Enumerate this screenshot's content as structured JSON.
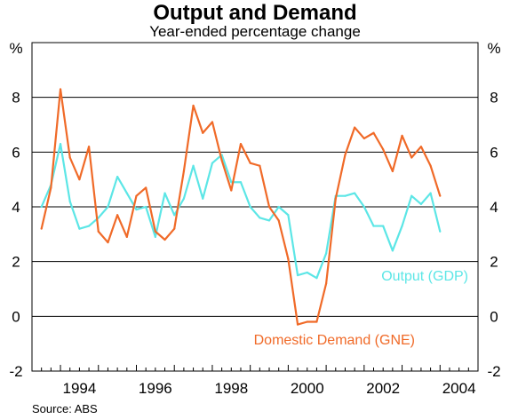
{
  "title": "Output and Demand",
  "subtitle": "Year-ended percentage change",
  "source": "Source: ABS",
  "unit_left": "%",
  "unit_right": "%",
  "colors": {
    "output": "#5ce6e6",
    "demand": "#f06a28",
    "grid": "#000000",
    "background": "#ffffff"
  },
  "chart_data": {
    "type": "line",
    "x_tick_labels": [
      "1994",
      "1996",
      "1998",
      "2000",
      "2002",
      "2004"
    ],
    "y_tick_labels": [
      "-2",
      "0",
      "2",
      "4",
      "6",
      "8"
    ],
    "ylim": [
      -2,
      10
    ],
    "xlim": [
      1993.25,
      2005.0
    ],
    "grid": true,
    "legend": "inline labels",
    "series": [
      {
        "name": "Output (GDP)",
        "label": "Output (GDP)",
        "color": "#5ce6e6",
        "points": [
          [
            1993.5,
            4.0
          ],
          [
            1993.75,
            4.8
          ],
          [
            1994.0,
            6.3
          ],
          [
            1994.25,
            4.2
          ],
          [
            1994.5,
            3.2
          ],
          [
            1994.75,
            3.3
          ],
          [
            1995.0,
            3.6
          ],
          [
            1995.25,
            4.0
          ],
          [
            1995.5,
            5.1
          ],
          [
            1995.75,
            4.5
          ],
          [
            1996.0,
            3.9
          ],
          [
            1996.25,
            4.0
          ],
          [
            1996.5,
            2.9
          ],
          [
            1996.75,
            4.5
          ],
          [
            1997.0,
            3.7
          ],
          [
            1997.25,
            4.3
          ],
          [
            1997.5,
            5.5
          ],
          [
            1997.75,
            4.3
          ],
          [
            1998.0,
            5.6
          ],
          [
            1998.25,
            5.9
          ],
          [
            1998.5,
            4.9
          ],
          [
            1998.75,
            4.9
          ],
          [
            1999.0,
            4.0
          ],
          [
            1999.25,
            3.6
          ],
          [
            1999.5,
            3.5
          ],
          [
            1999.75,
            4.0
          ],
          [
            2000.0,
            3.7
          ],
          [
            2000.25,
            1.5
          ],
          [
            2000.5,
            1.6
          ],
          [
            2000.75,
            1.4
          ],
          [
            2001.0,
            2.3
          ],
          [
            2001.25,
            4.4
          ],
          [
            2001.5,
            4.4
          ],
          [
            2001.75,
            4.5
          ],
          [
            2002.0,
            4.0
          ],
          [
            2002.25,
            3.3
          ],
          [
            2002.5,
            3.3
          ],
          [
            2002.75,
            2.4
          ],
          [
            2003.0,
            3.3
          ],
          [
            2003.25,
            4.4
          ],
          [
            2003.5,
            4.1
          ],
          [
            2003.75,
            4.5
          ],
          [
            2004.0,
            3.1
          ]
        ]
      },
      {
        "name": "Domestic Demand (GNE)",
        "label": "Domestic Demand (GNE)",
        "color": "#f06a28",
        "points": [
          [
            1993.5,
            3.2
          ],
          [
            1993.75,
            4.7
          ],
          [
            1994.0,
            8.3
          ],
          [
            1994.25,
            5.8
          ],
          [
            1994.5,
            5.0
          ],
          [
            1994.75,
            6.2
          ],
          [
            1995.0,
            3.1
          ],
          [
            1995.25,
            2.7
          ],
          [
            1995.5,
            3.7
          ],
          [
            1995.75,
            2.9
          ],
          [
            1996.0,
            4.4
          ],
          [
            1996.25,
            4.7
          ],
          [
            1996.5,
            3.1
          ],
          [
            1996.75,
            2.8
          ],
          [
            1997.0,
            3.2
          ],
          [
            1997.25,
            5.3
          ],
          [
            1997.5,
            7.7
          ],
          [
            1997.75,
            6.7
          ],
          [
            1998.0,
            7.1
          ],
          [
            1998.25,
            5.7
          ],
          [
            1998.5,
            4.6
          ],
          [
            1998.75,
            6.3
          ],
          [
            1999.0,
            5.6
          ],
          [
            1999.25,
            5.5
          ],
          [
            1999.5,
            4.0
          ],
          [
            1999.75,
            3.5
          ],
          [
            2000.0,
            2.1
          ],
          [
            2000.25,
            -0.3
          ],
          [
            2000.5,
            -0.2
          ],
          [
            2000.75,
            -0.2
          ],
          [
            2001.0,
            1.2
          ],
          [
            2001.25,
            4.3
          ],
          [
            2001.5,
            5.9
          ],
          [
            2001.75,
            6.9
          ],
          [
            2002.0,
            6.5
          ],
          [
            2002.25,
            6.7
          ],
          [
            2002.5,
            6.1
          ],
          [
            2002.75,
            5.3
          ],
          [
            2003.0,
            6.6
          ],
          [
            2003.25,
            5.8
          ],
          [
            2003.5,
            6.2
          ],
          [
            2003.75,
            5.5
          ],
          [
            2004.0,
            4.4
          ]
        ]
      }
    ]
  }
}
